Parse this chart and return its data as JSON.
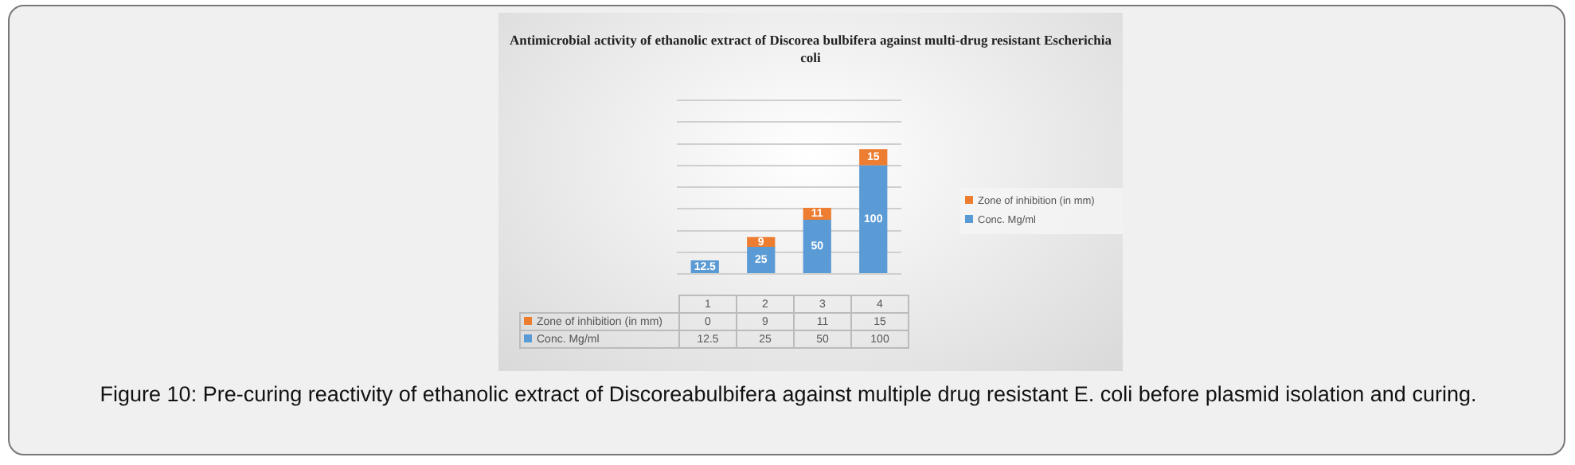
{
  "chart_data": {
    "type": "bar",
    "title": "Antimicrobial activity of ethanolic extract of Discorea bulbifera against multi-drug resistant Escherichia coli",
    "categories": [
      "1",
      "2",
      "3",
      "4"
    ],
    "series": [
      {
        "name": "Conc. Mg/ml",
        "color": "#5b9bd5",
        "values": [
          12.5,
          25,
          50,
          100
        ],
        "value_labels": [
          "12.5",
          "25",
          "50",
          "100"
        ]
      },
      {
        "name": "Zone of inhibition (in mm)",
        "color": "#ed7d31",
        "values": [
          0,
          9,
          11,
          15
        ],
        "value_labels": [
          "0",
          "9",
          "11",
          "15"
        ]
      }
    ],
    "stacked": true,
    "yticks": [
      {
        "value": 0,
        "label": null
      },
      {
        "value": 20,
        "label": null
      },
      {
        "value": 40,
        "label": null
      },
      {
        "value": 60,
        "label": null
      },
      {
        "value": 80,
        "label": null
      },
      {
        "value": 100,
        "label": null
      },
      {
        "value": 120,
        "label": null
      },
      {
        "value": 140,
        "label": null
      },
      {
        "value": 160,
        "label": null
      }
    ],
    "grid": "y",
    "tick_labels": "x",
    "legend": "right",
    "annotations": [
      "Figure 10: Pre-curing reactivity of ethanolic extract of Discoreabulbifera against multiple drug resistant E. coli before plasmid isolation and curing."
    ]
  }
}
